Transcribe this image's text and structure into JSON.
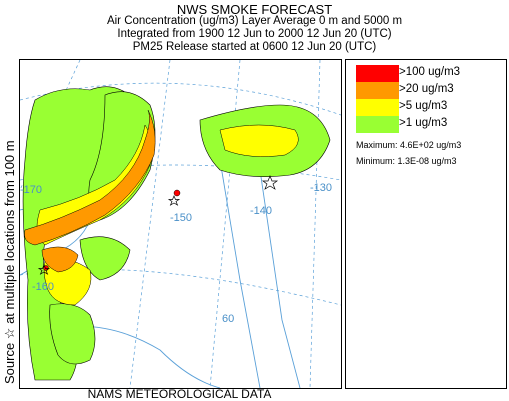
{
  "header": {
    "title": "NWS SMOKE FORECAST",
    "line1": "Air Concentration (ug/m3) Layer Average    0 m and  5000 m",
    "line2": "Integrated from 1900 12 Jun to 2000 12 Jun 20 (UTC)",
    "line3": "PM25 Release started at 0600 12 Jun 20 (UTC)"
  },
  "side_label": "Source ☆  at multiple locations    from  100 m",
  "map": {
    "longitude_labels": [
      "-170",
      "-160",
      "-150",
      "-140",
      "-130"
    ],
    "latitude_labels": [
      "60"
    ],
    "colors": {
      "coast": "#5aa0d8",
      "gt100": "#ff0000",
      "gt20": "#ff9900",
      "gt5": "#ffff00",
      "gt1": "#99ff33"
    }
  },
  "legend": {
    "items": [
      {
        "label": ">100 ug/m3",
        "color": "#ff0000"
      },
      {
        "label": ">20 ug/m3",
        "color": "#ff9900"
      },
      {
        "label": ">5 ug/m3",
        "color": "#ffff00"
      },
      {
        "label": ">1 ug/m3",
        "color": "#99ff33"
      }
    ],
    "maximum": "Maximum: 4.6E+02 ug/m3",
    "minimum": "Minimum: 1.3E-08 ug/m3"
  },
  "footer": "NAMS METEOROLOGICAL DATA"
}
